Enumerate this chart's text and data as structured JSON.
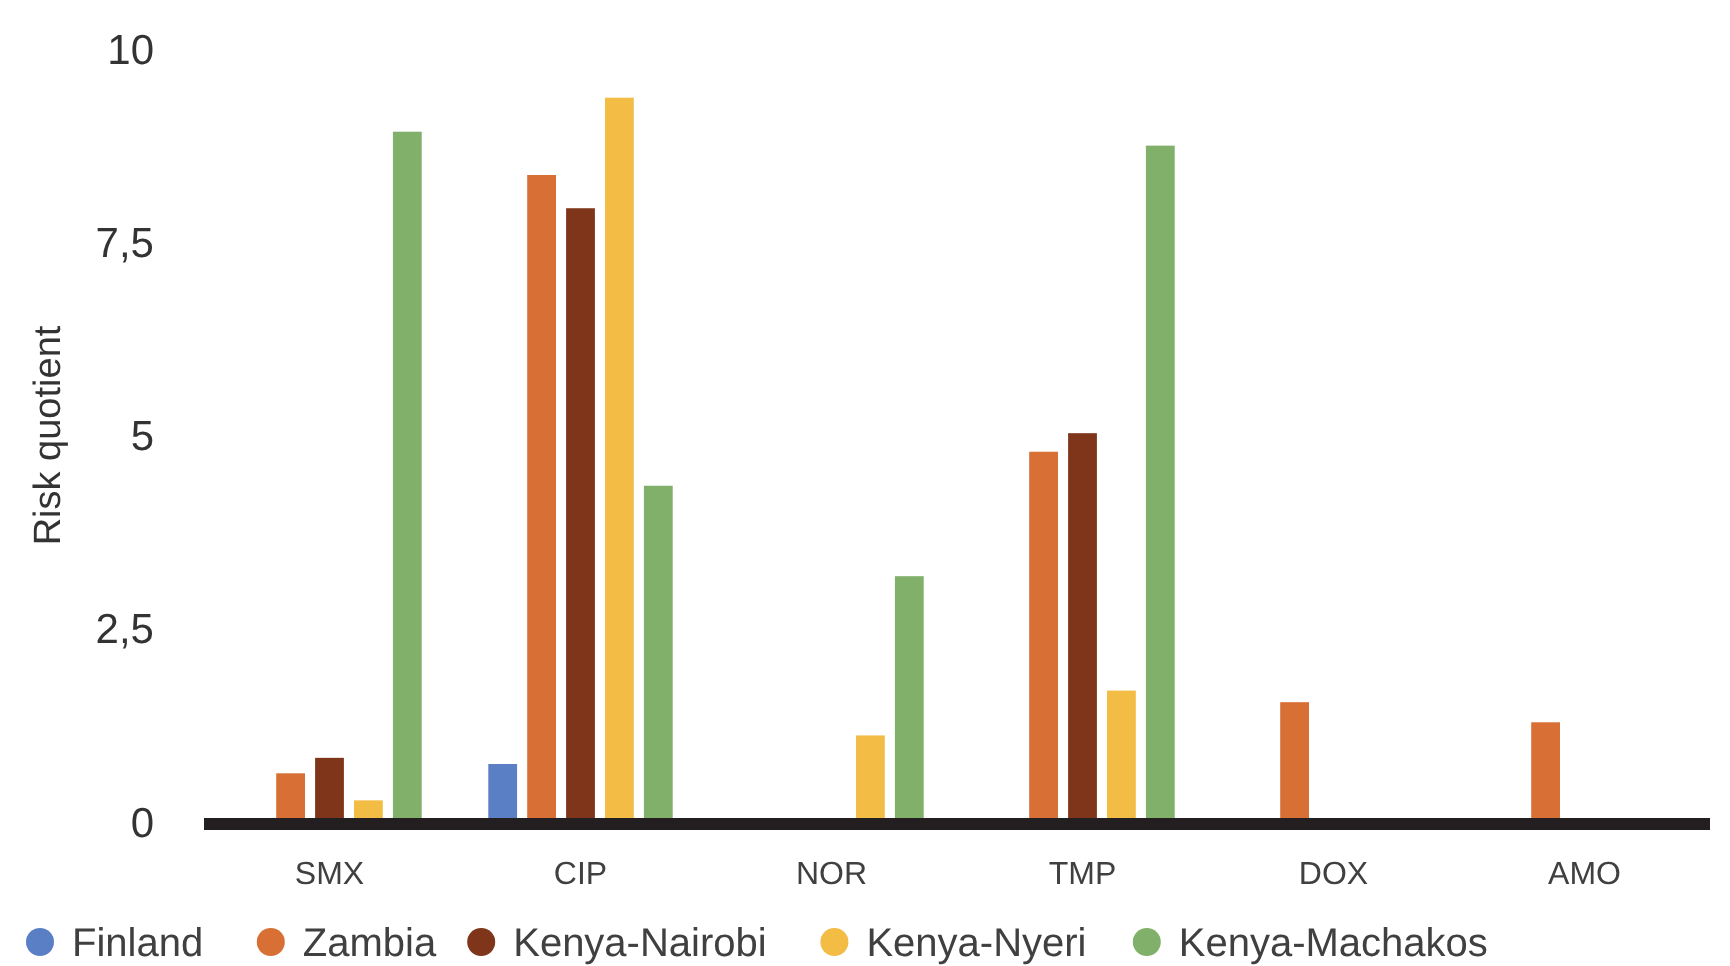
{
  "chart_data": {
    "type": "bar",
    "ylabel": "Risk quotient",
    "categories": [
      "SMX",
      "CIP",
      "NOR",
      "TMP",
      "DOX",
      "AMO"
    ],
    "series": [
      {
        "name": "Finland",
        "color": "#5b7fc4",
        "values": [
          null,
          0.75,
          null,
          null,
          null,
          null
        ]
      },
      {
        "name": "Zambia",
        "color": "#d87035",
        "values": [
          0.63,
          8.37,
          null,
          4.79,
          1.55,
          1.29
        ]
      },
      {
        "name": "Kenya-Nairobi",
        "color": "#7e3519",
        "values": [
          0.83,
          7.94,
          null,
          5.03,
          null,
          null
        ]
      },
      {
        "name": "Kenya-Nyeri",
        "color": "#f3bc45",
        "values": [
          0.28,
          9.37,
          1.12,
          1.7,
          null,
          null
        ]
      },
      {
        "name": "Kenya-Machakos",
        "color": "#80b06a",
        "values": [
          8.93,
          4.35,
          3.18,
          8.75,
          null,
          null
        ]
      }
    ],
    "ylim": [
      0,
      10
    ],
    "yticks": [
      0,
      {
        "value": 2.5,
        "label": "2,5"
      },
      5,
      {
        "value": 7.5,
        "label": "7,5"
      },
      10
    ],
    "grid": false,
    "legend": "bottom"
  }
}
